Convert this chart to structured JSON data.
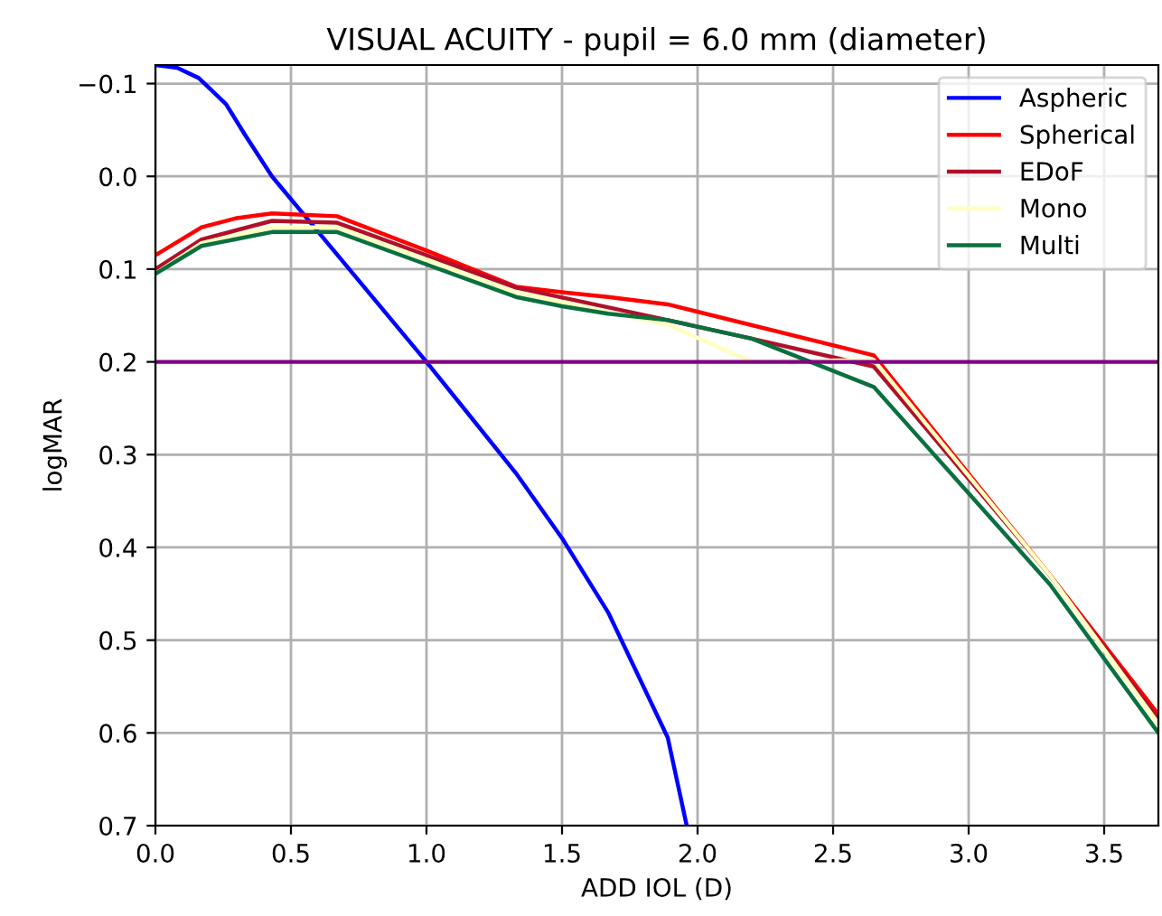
{
  "chart_data": {
    "type": "line",
    "title": "VISUAL ACUITY - pupil = 6.0 mm (diameter)",
    "xlabel": "ADD IOL (D)",
    "ylabel": "logMAR",
    "xlim": [
      0,
      3.7
    ],
    "ylim": [
      0.7,
      -0.12
    ],
    "xticks": [
      {
        "value": 0,
        "label": "0.0"
      },
      {
        "value": 0.5,
        "label": "0.5"
      },
      {
        "value": 1,
        "label": "1.0"
      },
      {
        "value": 1.5,
        "label": "1.5"
      },
      {
        "value": 2,
        "label": "2.0"
      },
      {
        "value": 2.5,
        "label": "2.5"
      },
      {
        "value": 3,
        "label": "3.0"
      },
      {
        "value": 3.5,
        "label": "3.5"
      }
    ],
    "yticks": [
      {
        "value": -0.1,
        "label": "−0.1"
      },
      {
        "value": 0,
        "label": "0.0"
      },
      0.1,
      0.2,
      0.3,
      0.4,
      0.5,
      0.6,
      0.7
    ],
    "grid": true,
    "legend": "top right",
    "ref_lines": [
      {
        "axis": "y",
        "value": 0.2,
        "color": "#800080"
      }
    ],
    "series": [
      {
        "name": "Aspheric",
        "color": "#0000ff",
        "x": [
          0,
          0.08,
          0.16,
          0.26,
          0.33,
          0.43,
          1.0,
          1.33,
          1.5,
          1.67,
          1.89,
          1.96
        ],
        "values": [
          -0.12,
          -0.117,
          -0.106,
          -0.078,
          -0.045,
          0.0,
          0.2,
          0.32,
          0.39,
          0.47,
          0.605,
          0.7
        ]
      },
      {
        "name": "Spherical",
        "color": "#ff0000",
        "x": [
          0,
          0.17,
          0.3,
          0.43,
          0.67,
          1.0,
          1.33,
          1.5,
          1.67,
          1.89,
          2.65,
          3.3,
          3.7
        ],
        "values": [
          0.085,
          0.055,
          0.045,
          0.04,
          0.043,
          0.08,
          0.119,
          0.125,
          0.13,
          0.138,
          0.193,
          0.43,
          0.58
        ]
      },
      {
        "name": "EDoF",
        "color": "#b0102a",
        "x": [
          0,
          0.17,
          0.43,
          0.67,
          1.0,
          1.33,
          1.89,
          2.2,
          2.65,
          3.3,
          3.7
        ],
        "values": [
          0.1,
          0.068,
          0.048,
          0.05,
          0.085,
          0.12,
          0.155,
          0.175,
          0.205,
          0.43,
          0.585
        ]
      },
      {
        "name": "Mono",
        "color": "#ffffc0",
        "x": [
          0,
          0.17,
          0.43,
          0.67,
          1.0,
          1.33,
          1.89,
          2.2,
          2.65,
          3.3,
          3.7
        ],
        "values": [
          0.105,
          0.072,
          0.055,
          0.055,
          0.09,
          0.125,
          0.16,
          0.2,
          0.198,
          0.43,
          0.59
        ]
      },
      {
        "name": "Multi",
        "color": "#0a7040",
        "x": [
          0,
          0.17,
          0.43,
          0.67,
          1.0,
          1.33,
          1.5,
          1.67,
          1.89,
          2.2,
          2.65,
          3.3,
          3.7
        ],
        "values": [
          0.105,
          0.075,
          0.06,
          0.06,
          0.095,
          0.13,
          0.14,
          0.148,
          0.155,
          0.175,
          0.227,
          0.44,
          0.6
        ]
      }
    ]
  }
}
